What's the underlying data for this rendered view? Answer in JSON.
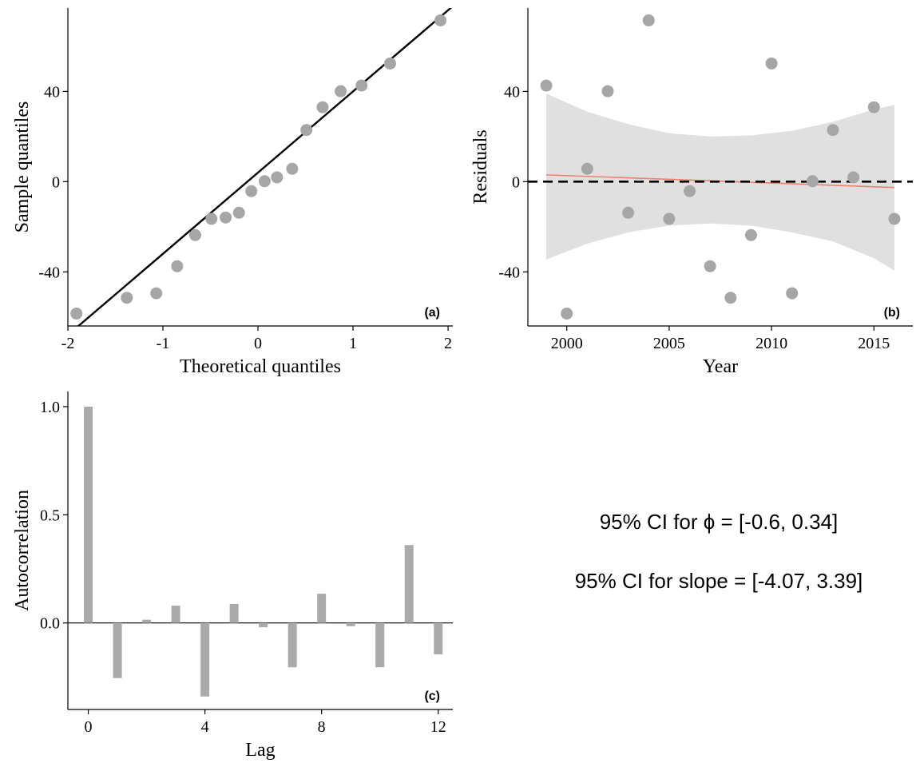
{
  "chart_data": [
    {
      "panel": "a",
      "type": "scatter",
      "tag": "(a)",
      "xlabel": "Theoretical quantiles",
      "ylabel": "Sample quantiles",
      "xlim": [
        -2.0,
        2.05
      ],
      "ylim": [
        -64,
        77
      ],
      "xticks": [
        -2,
        -1,
        0,
        1,
        2
      ],
      "yticks": [
        -40,
        0,
        40
      ],
      "point_color": "#A6A6A6",
      "line_color": "#000000",
      "points": {
        "x": [
          -1.91,
          -1.38,
          -1.07,
          -0.85,
          -0.66,
          -0.49,
          -0.34,
          -0.2,
          -0.07,
          0.07,
          0.2,
          0.36,
          0.51,
          0.68,
          0.87,
          1.09,
          1.39,
          1.92
        ],
        "y": [
          -58.5,
          -51.5,
          -49.5,
          -37.5,
          -23.7,
          -16.5,
          -15.9,
          -13.8,
          -4.2,
          0.2,
          1.9,
          5.7,
          22.9,
          33.0,
          40.1,
          42.6,
          52.4,
          71.5
        ]
      },
      "qq_line": {
        "intercept": 4.0,
        "slope": 36.0
      }
    },
    {
      "panel": "b",
      "type": "scatter",
      "tag": "(b)",
      "xlabel": "Year",
      "ylabel": "Residuals",
      "xlim": [
        1998.1,
        2016.9
      ],
      "ylim": [
        -64,
        77
      ],
      "xticks": [
        2000,
        2005,
        2010,
        2015
      ],
      "yticks": [
        -40,
        0,
        40
      ],
      "point_color": "#A6A6A6",
      "band_color": "#E0E0E0",
      "trend_color": "#F08070",
      "points": {
        "x": [
          1999,
          2000,
          2001,
          2002,
          2003,
          2004,
          2005,
          2006,
          2007,
          2008,
          2009,
          2010,
          2011,
          2012,
          2013,
          2014,
          2015,
          2016
        ],
        "y": [
          42.6,
          -58.5,
          5.7,
          40.1,
          -13.8,
          71.5,
          -16.5,
          -4.2,
          -37.5,
          -51.5,
          -23.7,
          52.4,
          -49.5,
          0.2,
          22.9,
          1.9,
          33.0,
          -16.5
        ]
      },
      "trend": {
        "x": [
          1999,
          2016
        ],
        "y": [
          3.0,
          -2.6
        ]
      },
      "confidence_band": {
        "x": [
          1999,
          2001,
          2003,
          2005,
          2007,
          2009,
          2011,
          2013,
          2015,
          2016
        ],
        "upper": [
          39,
          31,
          25.5,
          21.5,
          20,
          20.5,
          22.5,
          26.5,
          32,
          34
        ],
        "lower": [
          -34.5,
          -27.5,
          -22.5,
          -19.5,
          -18.5,
          -19.5,
          -22.5,
          -26.5,
          -34,
          -39.5
        ]
      },
      "reference_line": {
        "y": 0,
        "style": "dashed"
      }
    },
    {
      "panel": "c",
      "type": "bar",
      "tag": "(c)",
      "xlabel": "Lag",
      "ylabel": "Autocorrelation",
      "xlim": [
        -0.7,
        12.5
      ],
      "ylim": [
        -0.4,
        1.07
      ],
      "xticks": [
        0,
        4,
        8,
        12
      ],
      "yticks": [
        0.0,
        0.5,
        1.0
      ],
      "ytick_labels": [
        "0.0",
        "0.5",
        "1.0"
      ],
      "bar_color": "#AAAAAA",
      "categories": [
        0,
        1,
        2,
        3,
        4,
        5,
        6,
        7,
        8,
        9,
        10,
        11,
        12
      ],
      "values": [
        1.0,
        -0.255,
        0.015,
        0.08,
        -0.34,
        0.088,
        -0.02,
        -0.205,
        0.135,
        -0.015,
        -0.205,
        0.36,
        -0.145
      ]
    }
  ],
  "ci_text": {
    "phi": "95% CI for ϕ =  [-0.6, 0.34]",
    "slope": "95% CI for slope =  [-4.07, 3.39]"
  }
}
